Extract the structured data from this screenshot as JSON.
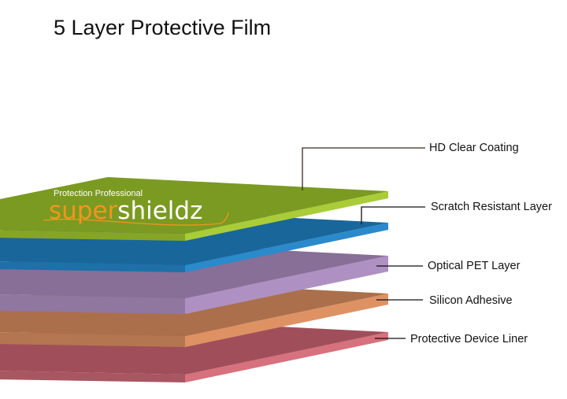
{
  "title": "5 Layer Protective Film",
  "logo": {
    "tagline": "Protection Professional",
    "brand_part1": "super",
    "brand_part2": "shieldz",
    "accent": "#f0961e"
  },
  "layers": [
    {
      "label": "HD Clear Coating",
      "top": "#7b9a22",
      "side": "#a9cc38",
      "front": "#86a526"
    },
    {
      "label": "Scratch Resistant Layer",
      "top": "#19669a",
      "side": "#2a8acb",
      "front": "#1d70a8"
    },
    {
      "label": "Optical PET Layer",
      "top": "#876f97",
      "side": "#ae91c2",
      "front": "#8f77a0"
    },
    {
      "label": "Silicon Adhesive",
      "top": "#ab6f4b",
      "side": "#de9264",
      "front": "#b47650"
    },
    {
      "label": "Protective Device Liner",
      "top": "#a04f5a",
      "side": "#d7717d",
      "front": "#a85662"
    }
  ],
  "leader_color": "#3a2a22"
}
